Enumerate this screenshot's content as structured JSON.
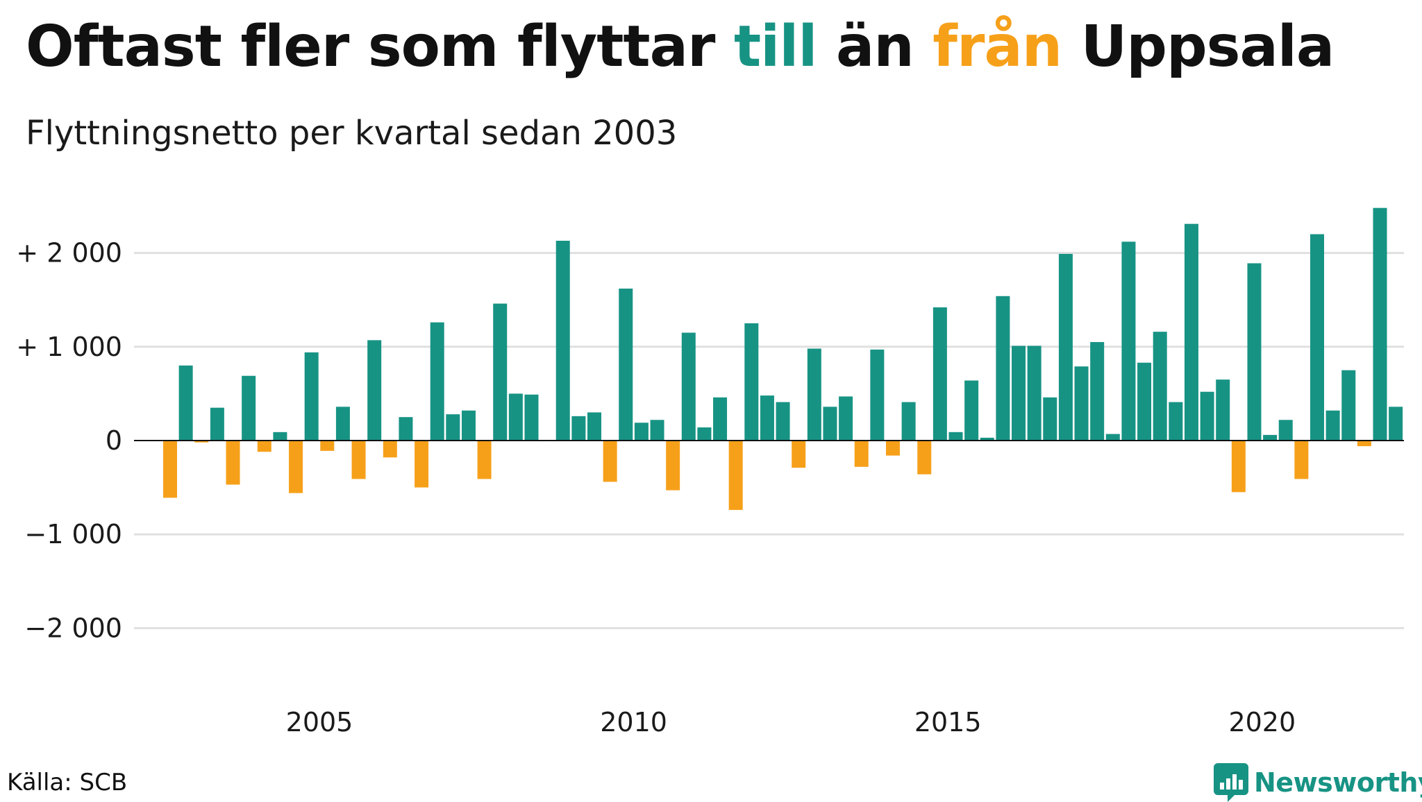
{
  "header": {
    "title_part1": "Oftast fler som flyttar ",
    "title_till": "till",
    "title_part2": " än ",
    "title_fran": "från",
    "title_part3": " Uppsala",
    "subtitle": "Flyttningsnetto per kvartal sedan 2003"
  },
  "footer": {
    "source": "Källa: SCB",
    "brand": "Newsworthy"
  },
  "colors": {
    "positive": "#179384",
    "negative": "#f6a01a",
    "grid": "#e0e0e0",
    "text": "#111111"
  },
  "chart_data": {
    "type": "bar",
    "title": "Oftast fler som flyttar till än från Uppsala",
    "subtitle": "Flyttningsnetto per kvartal sedan 2003",
    "ylim": [
      -2500,
      2500
    ],
    "yticks": [
      {
        "value": 2000,
        "label": "+ 2 000"
      },
      {
        "value": 1000,
        "label": "+ 1 000"
      },
      {
        "value": 0,
        "label": "0"
      },
      {
        "value": -1000,
        "label": "−1 000"
      },
      {
        "value": -2000,
        "label": "−2 000"
      }
    ],
    "xticks": [
      {
        "year": 2005,
        "label": "2005"
      },
      {
        "year": 2010,
        "label": "2010"
      },
      {
        "year": 2015,
        "label": "2015"
      },
      {
        "year": 2020,
        "label": "2020"
      }
    ],
    "start_year": 2003,
    "grid": true,
    "legend": "none",
    "values": [
      -610,
      800,
      -20,
      350,
      -470,
      690,
      -120,
      90,
      -560,
      940,
      -110,
      360,
      -410,
      1070,
      -180,
      250,
      -500,
      1260,
      280,
      320,
      -410,
      1460,
      500,
      490,
      0,
      2130,
      260,
      300,
      -440,
      1620,
      190,
      220,
      -530,
      1150,
      140,
      460,
      -740,
      1250,
      480,
      410,
      -290,
      980,
      360,
      470,
      -280,
      970,
      -160,
      410,
      -360,
      1420,
      90,
      640,
      30,
      1540,
      1010,
      1010,
      460,
      1990,
      790,
      1050,
      70,
      2120,
      830,
      1160,
      410,
      2310,
      520,
      650,
      -550,
      1890,
      60,
      220,
      -410,
      2200,
      320,
      750,
      -60,
      2480,
      360
    ]
  }
}
